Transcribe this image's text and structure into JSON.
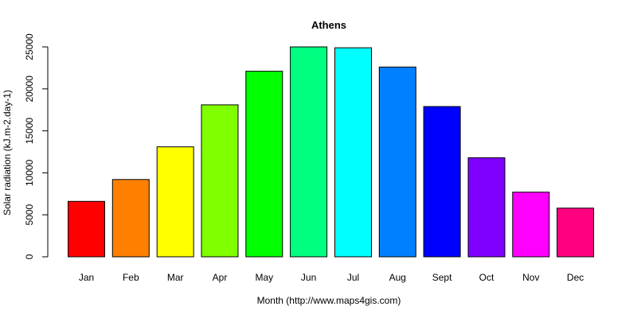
{
  "chart_data": {
    "type": "bar",
    "title": "Athens",
    "xlabel": "Month (http://www.maps4gis.com)",
    "ylabel": "Solar radiation (kJ.m-2.day-1)",
    "ylim": [
      0,
      25000
    ],
    "yticks": [
      0,
      5000,
      10000,
      15000,
      20000,
      25000
    ],
    "categories": [
      "Jan",
      "Feb",
      "Mar",
      "Apr",
      "May",
      "Jun",
      "Jul",
      "Aug",
      "Sept",
      "Oct",
      "Nov",
      "Dec"
    ],
    "values": [
      6600,
      9200,
      13100,
      18100,
      22100,
      25000,
      24900,
      22600,
      17900,
      11800,
      7700,
      5800
    ],
    "colors": [
      "#FF0000",
      "#FF8000",
      "#FFFF00",
      "#80FF00",
      "#00FF00",
      "#00FF80",
      "#00FFFF",
      "#0080FF",
      "#0000FF",
      "#8000FF",
      "#FF00FF",
      "#FF0080"
    ],
    "grid": false,
    "legend": "none"
  }
}
